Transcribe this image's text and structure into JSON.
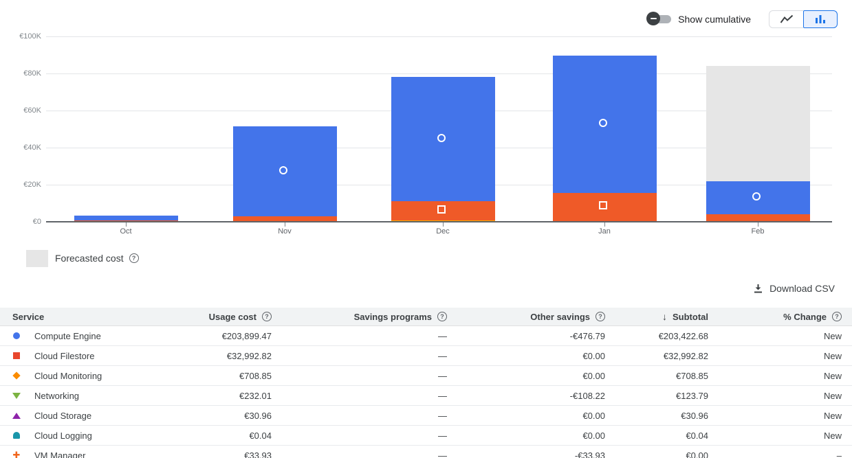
{
  "controls": {
    "show_cumulative_label": "Show cumulative",
    "line_chart_button": "line chart view",
    "bar_chart_button": "bar chart view (selected)"
  },
  "icons": {
    "help": "?",
    "sort_desc": "↓",
    "toggle_off": "minus"
  },
  "colors": {
    "compute_blue": "#4374ea",
    "filestore_orange": "#ef5a28",
    "monitoring_yellow": "#f9ab00",
    "forecast_gray": "#e6e6e6",
    "selected_button_bg": "#e8f0fe",
    "selected_button_border": "#1a73e8"
  },
  "chart_data": {
    "type": "bar",
    "stacked": true,
    "currency": "EUR",
    "categories": [
      "Oct",
      "Nov",
      "Dec",
      "Jan",
      "Feb"
    ],
    "unit": "thousands EUR (estimated from pixels)",
    "series": [
      {
        "name": "Cloud Monitoring",
        "color": "#f9ab00",
        "marker": "none",
        "values": [
          0.01,
          0.05,
          0.45,
          0.15,
          0.05
        ]
      },
      {
        "name": "Cloud Filestore",
        "color": "#ef5a28",
        "marker": "square",
        "values": [
          0.45,
          2.7,
          10.4,
          15.3,
          4.0
        ]
      },
      {
        "name": "Compute Engine",
        "color": "#4374ea",
        "marker": "circle",
        "values": [
          2.8,
          48.6,
          67.2,
          74.0,
          17.5
        ]
      }
    ],
    "forecast": {
      "category": "Feb",
      "total": 84,
      "color": "#e6e6e6",
      "label": "Forecasted cost"
    },
    "y_ticks": [
      "€0",
      "€20K",
      "€40K",
      "€60K",
      "€80K",
      "€100K"
    ],
    "ylim": [
      0,
      100
    ],
    "grid": true,
    "legend_position": "bottom-left"
  },
  "legend": {
    "forecast_label": "Forecasted cost"
  },
  "toolbar": {
    "download_label": "Download CSV"
  },
  "table": {
    "headers": {
      "service": "Service",
      "usage": "Usage cost",
      "savings": "Savings programs",
      "other": "Other savings",
      "subtotal": "Subtotal",
      "change": "% Change"
    },
    "rows": [
      {
        "service": "Compute Engine",
        "usage": "€203,899.47",
        "savings": "—",
        "other": "-€476.79",
        "subtotal": "€203,422.68",
        "change": "New"
      },
      {
        "service": "Cloud Filestore",
        "usage": "€32,992.82",
        "savings": "—",
        "other": "€0.00",
        "subtotal": "€32,992.82",
        "change": "New"
      },
      {
        "service": "Cloud Monitoring",
        "usage": "€708.85",
        "savings": "—",
        "other": "€0.00",
        "subtotal": "€708.85",
        "change": "New"
      },
      {
        "service": "Networking",
        "usage": "€232.01",
        "savings": "—",
        "other": "-€108.22",
        "subtotal": "€123.79",
        "change": "New"
      },
      {
        "service": "Cloud Storage",
        "usage": "€30.96",
        "savings": "—",
        "other": "€0.00",
        "subtotal": "€30.96",
        "change": "New"
      },
      {
        "service": "Cloud Logging",
        "usage": "€0.04",
        "savings": "—",
        "other": "€0.00",
        "subtotal": "€0.04",
        "change": "New"
      },
      {
        "service": "VM Manager",
        "usage": "€33.93",
        "savings": "—",
        "other": "-€33.93",
        "subtotal": "€0.00",
        "change": "–"
      }
    ]
  }
}
